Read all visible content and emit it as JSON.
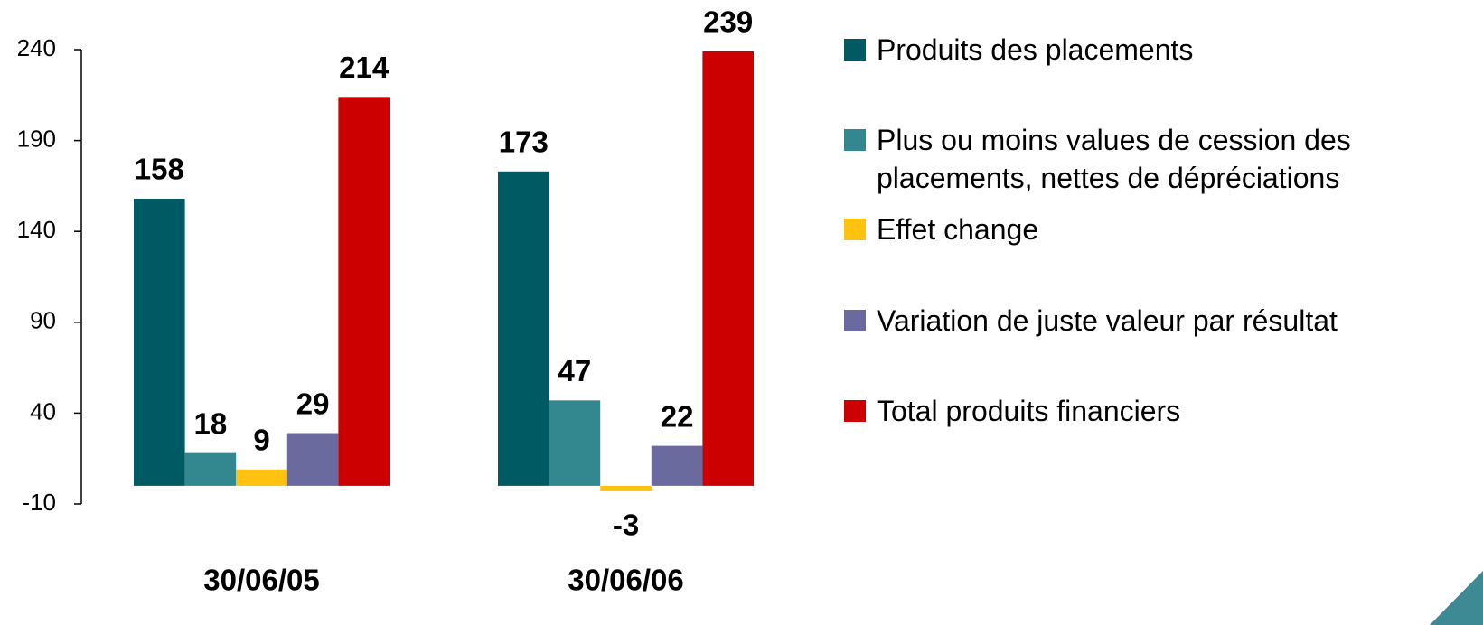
{
  "chart_data": {
    "type": "bar",
    "categories": [
      "30/06/05",
      "30/06/06"
    ],
    "series": [
      {
        "name": "Produits des placements",
        "color": "#005a64",
        "values": [
          158,
          173
        ]
      },
      {
        "name": "Plus ou moins values de cession des placements, nettes de dépréciations",
        "color": "#33878e",
        "values": [
          18,
          47
        ]
      },
      {
        "name": "Effet change",
        "color": "#ffc20e",
        "values": [
          9,
          -3
        ]
      },
      {
        "name": "Variation de juste valeur par résultat",
        "color": "#6a6a9e",
        "values": [
          29,
          22
        ]
      },
      {
        "name": "Total produits financiers",
        "color": "#cc0000",
        "values": [
          214,
          239
        ]
      }
    ],
    "ylim": [
      -10,
      240
    ],
    "yticks": [
      -10,
      40,
      90,
      140,
      190,
      240
    ],
    "grid": false,
    "legend": "right"
  }
}
